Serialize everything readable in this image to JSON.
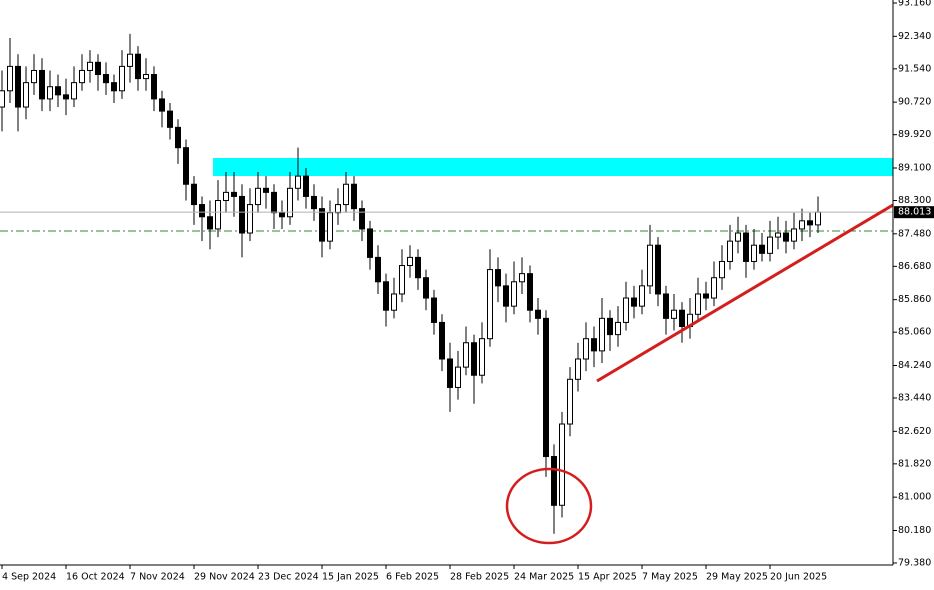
{
  "chart_data": {
    "type": "candlestick",
    "categories": [
      "4 Sep 2024",
      null,
      null,
      null,
      null,
      null,
      null,
      null,
      "16 Oct 2024",
      null,
      null,
      null,
      null,
      null,
      null,
      null,
      "7 Nov 2024",
      null,
      null,
      null,
      null,
      null,
      null,
      null,
      "29 Nov 2024",
      null,
      null,
      null,
      null,
      null,
      null,
      null,
      "23 Dec 2024",
      null,
      null,
      null,
      null,
      null,
      null,
      null,
      "15 Jan 2025",
      null,
      null,
      null,
      null,
      null,
      null,
      null,
      "6 Feb 2025",
      null,
      null,
      null,
      null,
      null,
      null,
      null,
      "28 Feb 2025",
      null,
      null,
      null,
      null,
      null,
      null,
      null,
      "24 Mar 2025",
      null,
      null,
      null,
      null,
      null,
      null,
      null,
      "15 Apr 2025",
      null,
      null,
      null,
      null,
      null,
      null,
      null,
      "7 May 2025",
      null,
      null,
      null,
      null,
      null,
      null,
      null,
      "29 May 2025",
      null,
      null,
      null,
      null,
      null,
      null,
      null,
      "20 Jun 2025",
      null,
      null,
      null,
      null,
      null,
      null
    ],
    "open": [
      90.6,
      91.0,
      91.6,
      90.6,
      91.2,
      91.5,
      90.8,
      91.1,
      90.9,
      90.8,
      91.2,
      91.5,
      91.7,
      91.4,
      91.2,
      91.0,
      91.6,
      91.9,
      91.3,
      91.4,
      90.8,
      90.5,
      90.1,
      89.6,
      88.7,
      88.2,
      87.9,
      87.6,
      88.3,
      88.5,
      88.4,
      87.5,
      88.2,
      88.6,
      88.5,
      88.0,
      87.9,
      88.6,
      88.9,
      88.4,
      88.1,
      87.3,
      88.0,
      88.2,
      88.7,
      88.1,
      87.6,
      86.9,
      86.3,
      85.6,
      86.0,
      86.7,
      86.9,
      86.4,
      85.9,
      85.3,
      84.4,
      83.7,
      84.2,
      84.8,
      84.0,
      84.9,
      86.6,
      86.2,
      85.7,
      86.3,
      86.5,
      85.6,
      85.4,
      82.0,
      80.8,
      82.8,
      83.9,
      84.4,
      84.9,
      84.6,
      85.4,
      85.0,
      85.3,
      85.9,
      85.7,
      86.2,
      87.2,
      86.0,
      85.4,
      85.6,
      85.2,
      85.5,
      86.0,
      85.9,
      86.4,
      86.8,
      87.3,
      87.5,
      86.8,
      87.2,
      87.0,
      87.4,
      87.5,
      87.3,
      87.6,
      87.8,
      87.7
    ],
    "high": [
      91.5,
      92.3,
      91.9,
      91.6,
      91.9,
      91.8,
      91.5,
      91.4,
      91.3,
      91.6,
      91.9,
      92.0,
      91.9,
      91.7,
      91.4,
      92.0,
      92.4,
      92.1,
      91.8,
      91.6,
      91.0,
      90.7,
      90.3,
      89.8,
      88.9,
      88.4,
      88.3,
      88.8,
      89.0,
      89.0,
      88.7,
      88.6,
      89.0,
      88.9,
      88.7,
      88.3,
      89.0,
      89.6,
      89.1,
      88.7,
      88.4,
      88.3,
      88.6,
      89.0,
      88.9,
      88.3,
      87.8,
      87.2,
      86.5,
      86.4,
      87.1,
      87.2,
      87.1,
      86.6,
      86.1,
      85.5,
      84.8,
      84.6,
      85.2,
      85.0,
      85.3,
      87.1,
      86.9,
      86.5,
      86.8,
      86.9,
      86.7,
      85.9,
      85.6,
      82.3,
      83.1,
      84.2,
      84.8,
      85.3,
      85.2,
      85.9,
      85.6,
      85.7,
      86.3,
      86.2,
      86.6,
      87.7,
      87.4,
      86.2,
      86.0,
      85.8,
      85.9,
      86.4,
      86.3,
      86.8,
      87.2,
      87.7,
      87.9,
      87.7,
      87.6,
      87.5,
      87.8,
      87.9,
      87.8,
      88.0,
      88.1,
      88.0,
      88.4
    ],
    "low": [
      90.0,
      90.7,
      90.0,
      90.3,
      90.9,
      90.5,
      90.5,
      90.6,
      90.4,
      90.6,
      91.0,
      91.2,
      91.0,
      90.9,
      90.7,
      90.8,
      91.2,
      91.0,
      91.0,
      90.5,
      90.1,
      89.8,
      89.2,
      88.3,
      87.7,
      87.3,
      87.1,
      87.4,
      88.0,
      87.9,
      86.9,
      87.3,
      88.0,
      88.1,
      87.6,
      87.6,
      87.7,
      88.3,
      88.1,
      87.8,
      86.9,
      87.1,
      87.7,
      88.0,
      87.8,
      87.3,
      86.6,
      86.0,
      85.2,
      85.4,
      85.8,
      86.4,
      86.1,
      85.6,
      85.0,
      84.1,
      83.1,
      83.4,
      84.0,
      83.3,
      83.8,
      84.7,
      85.8,
      85.3,
      85.5,
      86.0,
      85.3,
      85.0,
      81.5,
      80.1,
      80.5,
      82.5,
      83.6,
      84.1,
      84.2,
      84.3,
      84.6,
      84.7,
      85.1,
      85.4,
      85.5,
      86.0,
      85.7,
      85.0,
      85.1,
      84.8,
      84.9,
      85.3,
      85.6,
      85.7,
      86.1,
      86.6,
      87.0,
      86.4,
      86.6,
      86.8,
      86.8,
      87.1,
      87.0,
      87.1,
      87.3,
      87.4,
      87.5
    ],
    "close": [
      91.0,
      91.6,
      90.6,
      91.2,
      91.5,
      90.8,
      91.1,
      90.9,
      90.8,
      91.2,
      91.5,
      91.7,
      91.4,
      91.2,
      91.0,
      91.6,
      91.9,
      91.3,
      91.4,
      90.8,
      90.5,
      90.1,
      89.6,
      88.7,
      88.2,
      87.9,
      87.6,
      88.3,
      88.5,
      88.4,
      87.5,
      88.2,
      88.6,
      88.5,
      88.0,
      87.9,
      88.6,
      88.9,
      88.4,
      88.1,
      87.3,
      88.0,
      88.2,
      88.7,
      88.1,
      87.6,
      86.9,
      86.3,
      85.6,
      86.0,
      86.7,
      86.9,
      86.4,
      85.9,
      85.3,
      84.4,
      83.7,
      84.2,
      84.8,
      84.0,
      84.9,
      86.6,
      86.2,
      85.7,
      86.3,
      86.5,
      85.6,
      85.4,
      82.0,
      80.8,
      82.8,
      83.9,
      84.4,
      84.9,
      84.6,
      85.4,
      85.0,
      85.3,
      85.9,
      85.7,
      86.2,
      87.2,
      86.0,
      85.4,
      85.6,
      85.2,
      85.5,
      86.0,
      85.9,
      86.4,
      86.8,
      87.3,
      87.5,
      86.8,
      87.2,
      87.0,
      87.4,
      87.5,
      87.3,
      87.6,
      87.8,
      87.7,
      88.013
    ],
    "up_color": "#ffffff",
    "down_color": "#000000",
    "ylim": [
      79.38,
      93.16
    ],
    "yticks": [
      {
        "value": 93.16,
        "label": "93.160"
      },
      {
        "value": 92.34,
        "label": "92.340"
      },
      {
        "value": 91.54,
        "label": "91.540"
      },
      {
        "value": 90.72,
        "label": "90.720"
      },
      {
        "value": 89.92,
        "label": "89.920"
      },
      {
        "value": 89.1,
        "label": "89.100"
      },
      {
        "value": 88.3,
        "label": "88.300"
      },
      {
        "value": 87.48,
        "label": "87.480"
      },
      {
        "value": 86.68,
        "label": "86.680"
      },
      {
        "value": 85.86,
        "label": "85.860"
      },
      {
        "value": 85.06,
        "label": "85.060"
      },
      {
        "value": 84.24,
        "label": "84.240"
      },
      {
        "value": 83.44,
        "label": "83.440"
      },
      {
        "value": 82.62,
        "label": "82.620"
      },
      {
        "value": 81.82,
        "label": "81.820"
      },
      {
        "value": 81.0,
        "label": "81.000"
      },
      {
        "value": 80.18,
        "label": "80.180"
      },
      {
        "value": 79.38,
        "label": "79.380"
      }
    ],
    "last_price": {
      "value": 88.013,
      "label": "88.013"
    }
  }
}
